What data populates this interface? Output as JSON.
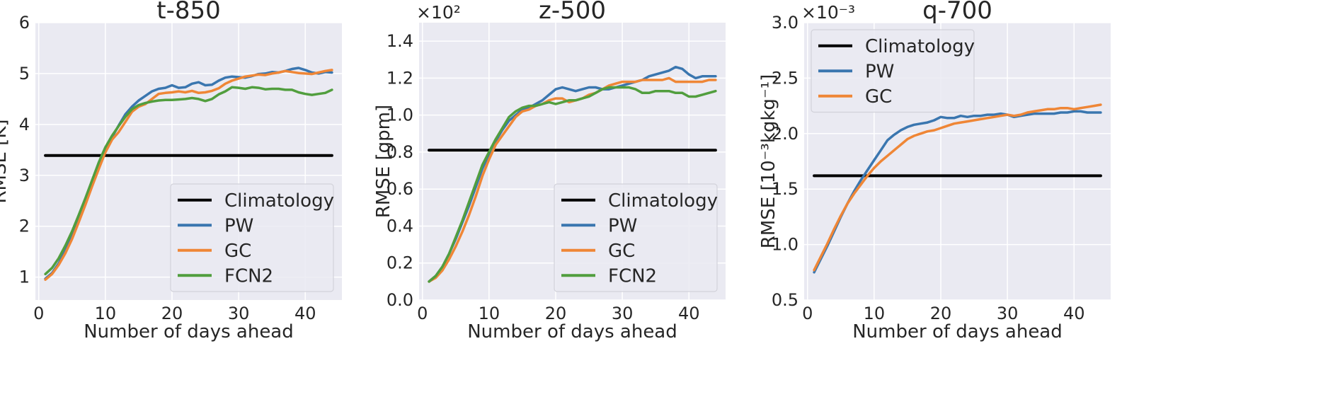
{
  "colors": {
    "Climatology": "#000000",
    "PW": "#3a76af",
    "GC": "#ef8636",
    "FCN2": "#519e3e",
    "axes_background": "#eaeaf2",
    "grid": "#ffffff"
  },
  "chart_data": [
    {
      "type": "line",
      "title": "t-850",
      "xlabel": "Number of days ahead",
      "ylabel": "RMSE [K]",
      "multiplier": "",
      "xlim": [
        -0.5,
        45.5
      ],
      "ylim": [
        0.55,
        6.0
      ],
      "xticks": [
        0,
        10,
        20,
        30,
        40
      ],
      "xtick_labels": [
        "0",
        "10",
        "20",
        "30",
        "40"
      ],
      "yticks": [
        1,
        2,
        3,
        4,
        5,
        6
      ],
      "ytick_labels": [
        "1",
        "2",
        "3",
        "4",
        "5",
        "6"
      ],
      "grid": true,
      "legend_position": "lower-right",
      "x": [
        1,
        2,
        3,
        4,
        5,
        6,
        7,
        8,
        9,
        10,
        11,
        12,
        13,
        14,
        15,
        16,
        17,
        18,
        19,
        20,
        21,
        22,
        23,
        24,
        25,
        26,
        27,
        28,
        29,
        30,
        31,
        32,
        33,
        34,
        35,
        36,
        37,
        38,
        39,
        40,
        41,
        42,
        43,
        44
      ],
      "series": [
        {
          "name": "Climatology",
          "values": [
            3.39,
            3.39,
            3.39,
            3.39,
            3.39,
            3.39,
            3.39,
            3.39,
            3.39,
            3.39,
            3.39,
            3.39,
            3.39,
            3.39,
            3.39,
            3.39,
            3.39,
            3.39,
            3.39,
            3.39,
            3.39,
            3.39,
            3.39,
            3.39,
            3.39,
            3.39,
            3.39,
            3.39,
            3.39,
            3.39,
            3.39,
            3.39,
            3.39,
            3.39,
            3.39,
            3.39,
            3.39,
            3.39,
            3.39,
            3.39,
            3.39,
            3.39,
            3.39,
            3.39
          ]
        },
        {
          "name": "PW",
          "values": [
            0.97,
            1.08,
            1.27,
            1.52,
            1.8,
            2.12,
            2.45,
            2.8,
            3.15,
            3.48,
            3.75,
            3.98,
            4.2,
            4.35,
            4.47,
            4.56,
            4.65,
            4.7,
            4.72,
            4.77,
            4.72,
            4.73,
            4.8,
            4.83,
            4.77,
            4.78,
            4.86,
            4.92,
            4.94,
            4.93,
            4.92,
            4.95,
            4.99,
            5.0,
            5.03,
            5.02,
            5.05,
            5.09,
            5.11,
            5.07,
            5.02,
            5.0,
            5.03,
            5.02
          ]
        },
        {
          "name": "GC",
          "values": [
            0.95,
            1.06,
            1.24,
            1.47,
            1.75,
            2.08,
            2.42,
            2.78,
            3.12,
            3.45,
            3.7,
            3.85,
            4.05,
            4.25,
            4.35,
            4.4,
            4.5,
            4.6,
            4.62,
            4.63,
            4.65,
            4.63,
            4.66,
            4.62,
            4.63,
            4.66,
            4.71,
            4.8,
            4.86,
            4.9,
            4.94,
            4.96,
            4.98,
            4.97,
            5.0,
            5.02,
            5.05,
            5.03,
            5.01,
            5.0,
            4.99,
            5.02,
            5.05,
            5.07
          ]
        },
        {
          "name": "FCN2",
          "values": [
            1.06,
            1.18,
            1.37,
            1.62,
            1.9,
            2.22,
            2.55,
            2.9,
            3.25,
            3.55,
            3.78,
            3.97,
            4.15,
            4.3,
            4.38,
            4.42,
            4.45,
            4.47,
            4.48,
            4.48,
            4.49,
            4.5,
            4.52,
            4.5,
            4.46,
            4.5,
            4.59,
            4.65,
            4.73,
            4.72,
            4.7,
            4.73,
            4.72,
            4.69,
            4.7,
            4.7,
            4.68,
            4.68,
            4.63,
            4.6,
            4.58,
            4.6,
            4.62,
            4.68
          ]
        }
      ]
    },
    {
      "type": "line",
      "title": "z-500",
      "xlabel": "Number of days ahead",
      "ylabel": "RMSE [gpm]",
      "multiplier": "×10²",
      "xlim": [
        -0.5,
        45.5
      ],
      "ylim": [
        0.0,
        1.5
      ],
      "xticks": [
        0,
        10,
        20,
        30,
        40
      ],
      "xtick_labels": [
        "0",
        "10",
        "20",
        "30",
        "40"
      ],
      "yticks": [
        0.0,
        0.2,
        0.4,
        0.6,
        0.8,
        1.0,
        1.2,
        1.4
      ],
      "ytick_labels": [
        "0.0",
        "0.2",
        "0.4",
        "0.6",
        "0.8",
        "1.0",
        "1.2",
        "1.4"
      ],
      "grid": true,
      "legend_position": "lower-right",
      "x": [
        1,
        2,
        3,
        4,
        5,
        6,
        7,
        8,
        9,
        10,
        11,
        12,
        13,
        14,
        15,
        16,
        17,
        18,
        19,
        20,
        21,
        22,
        23,
        24,
        25,
        26,
        27,
        28,
        29,
        30,
        31,
        32,
        33,
        34,
        35,
        36,
        37,
        38,
        39,
        40,
        41,
        42,
        43,
        44
      ],
      "series": [
        {
          "name": "Climatology",
          "values": [
            0.81,
            0.81,
            0.81,
            0.81,
            0.81,
            0.81,
            0.81,
            0.81,
            0.81,
            0.81,
            0.81,
            0.81,
            0.81,
            0.81,
            0.81,
            0.81,
            0.81,
            0.81,
            0.81,
            0.81,
            0.81,
            0.81,
            0.81,
            0.81,
            0.81,
            0.81,
            0.81,
            0.81,
            0.81,
            0.81,
            0.81,
            0.81,
            0.81,
            0.81,
            0.81,
            0.81,
            0.81,
            0.81,
            0.81,
            0.81,
            0.81,
            0.81,
            0.81,
            0.81
          ]
        },
        {
          "name": "PW",
          "values": [
            0.1,
            0.13,
            0.18,
            0.25,
            0.33,
            0.42,
            0.51,
            0.61,
            0.71,
            0.79,
            0.86,
            0.92,
            0.97,
            1.0,
            1.03,
            1.04,
            1.06,
            1.08,
            1.11,
            1.14,
            1.15,
            1.14,
            1.13,
            1.14,
            1.15,
            1.15,
            1.14,
            1.14,
            1.15,
            1.16,
            1.17,
            1.18,
            1.19,
            1.21,
            1.22,
            1.23,
            1.24,
            1.26,
            1.25,
            1.22,
            1.2,
            1.21,
            1.21,
            1.21
          ]
        },
        {
          "name": "GC",
          "values": [
            0.1,
            0.12,
            0.16,
            0.22,
            0.29,
            0.37,
            0.46,
            0.56,
            0.67,
            0.76,
            0.84,
            0.89,
            0.94,
            0.99,
            1.02,
            1.03,
            1.05,
            1.06,
            1.08,
            1.09,
            1.09,
            1.07,
            1.08,
            1.09,
            1.11,
            1.12,
            1.14,
            1.16,
            1.17,
            1.18,
            1.18,
            1.18,
            1.19,
            1.19,
            1.19,
            1.19,
            1.2,
            1.18,
            1.18,
            1.18,
            1.18,
            1.18,
            1.19,
            1.19
          ]
        },
        {
          "name": "FCN2",
          "values": [
            0.1,
            0.13,
            0.18,
            0.25,
            0.34,
            0.43,
            0.53,
            0.63,
            0.73,
            0.8,
            0.87,
            0.93,
            0.99,
            1.02,
            1.04,
            1.05,
            1.05,
            1.06,
            1.07,
            1.06,
            1.07,
            1.08,
            1.08,
            1.09,
            1.1,
            1.12,
            1.14,
            1.15,
            1.15,
            1.15,
            1.15,
            1.14,
            1.12,
            1.12,
            1.13,
            1.13,
            1.13,
            1.12,
            1.12,
            1.1,
            1.1,
            1.11,
            1.12,
            1.13
          ]
        }
      ]
    },
    {
      "type": "line",
      "title": "q-700",
      "xlabel": "Number of days ahead",
      "ylabel": "RMSE [10⁻³kgkg⁻¹]",
      "multiplier": "×10⁻³",
      "xlim": [
        -0.5,
        45.5
      ],
      "ylim": [
        0.5,
        3.0
      ],
      "xticks": [
        0,
        10,
        20,
        30,
        40
      ],
      "xtick_labels": [
        "0",
        "10",
        "20",
        "30",
        "40"
      ],
      "yticks": [
        0.5,
        1.0,
        1.5,
        2.0,
        2.5,
        3.0
      ],
      "ytick_labels": [
        "0.5",
        "1.0",
        "1.5",
        "2.0",
        "2.5",
        "3.0"
      ],
      "grid": true,
      "legend_position": "upper-left",
      "x": [
        1,
        2,
        3,
        4,
        5,
        6,
        7,
        8,
        9,
        10,
        11,
        12,
        13,
        14,
        15,
        16,
        17,
        18,
        19,
        20,
        21,
        22,
        23,
        24,
        25,
        26,
        27,
        28,
        29,
        30,
        31,
        32,
        33,
        34,
        35,
        36,
        37,
        38,
        39,
        40,
        41,
        42,
        43,
        44
      ],
      "series": [
        {
          "name": "Climatology",
          "values": [
            1.62,
            1.62,
            1.62,
            1.62,
            1.62,
            1.62,
            1.62,
            1.62,
            1.62,
            1.62,
            1.62,
            1.62,
            1.62,
            1.62,
            1.62,
            1.62,
            1.62,
            1.62,
            1.62,
            1.62,
            1.62,
            1.62,
            1.62,
            1.62,
            1.62,
            1.62,
            1.62,
            1.62,
            1.62,
            1.62,
            1.62,
            1.62,
            1.62,
            1.62,
            1.62,
            1.62,
            1.62,
            1.62,
            1.62,
            1.62,
            1.62,
            1.62,
            1.62,
            1.62
          ]
        },
        {
          "name": "PW",
          "values": [
            0.75,
            0.87,
            0.99,
            1.12,
            1.25,
            1.37,
            1.48,
            1.58,
            1.67,
            1.76,
            1.85,
            1.94,
            1.99,
            2.03,
            2.06,
            2.08,
            2.09,
            2.1,
            2.12,
            2.15,
            2.14,
            2.14,
            2.16,
            2.15,
            2.16,
            2.16,
            2.17,
            2.17,
            2.18,
            2.17,
            2.15,
            2.16,
            2.17,
            2.18,
            2.18,
            2.18,
            2.18,
            2.19,
            2.19,
            2.2,
            2.2,
            2.19,
            2.19,
            2.19
          ]
        },
        {
          "name": "GC",
          "values": [
            0.77,
            0.89,
            1.01,
            1.14,
            1.26,
            1.37,
            1.46,
            1.54,
            1.62,
            1.69,
            1.75,
            1.8,
            1.85,
            1.9,
            1.95,
            1.98,
            2.0,
            2.02,
            2.03,
            2.05,
            2.07,
            2.09,
            2.1,
            2.11,
            2.12,
            2.13,
            2.14,
            2.15,
            2.16,
            2.17,
            2.16,
            2.17,
            2.19,
            2.2,
            2.21,
            2.22,
            2.22,
            2.23,
            2.23,
            2.22,
            2.23,
            2.24,
            2.25,
            2.26
          ]
        }
      ]
    }
  ]
}
